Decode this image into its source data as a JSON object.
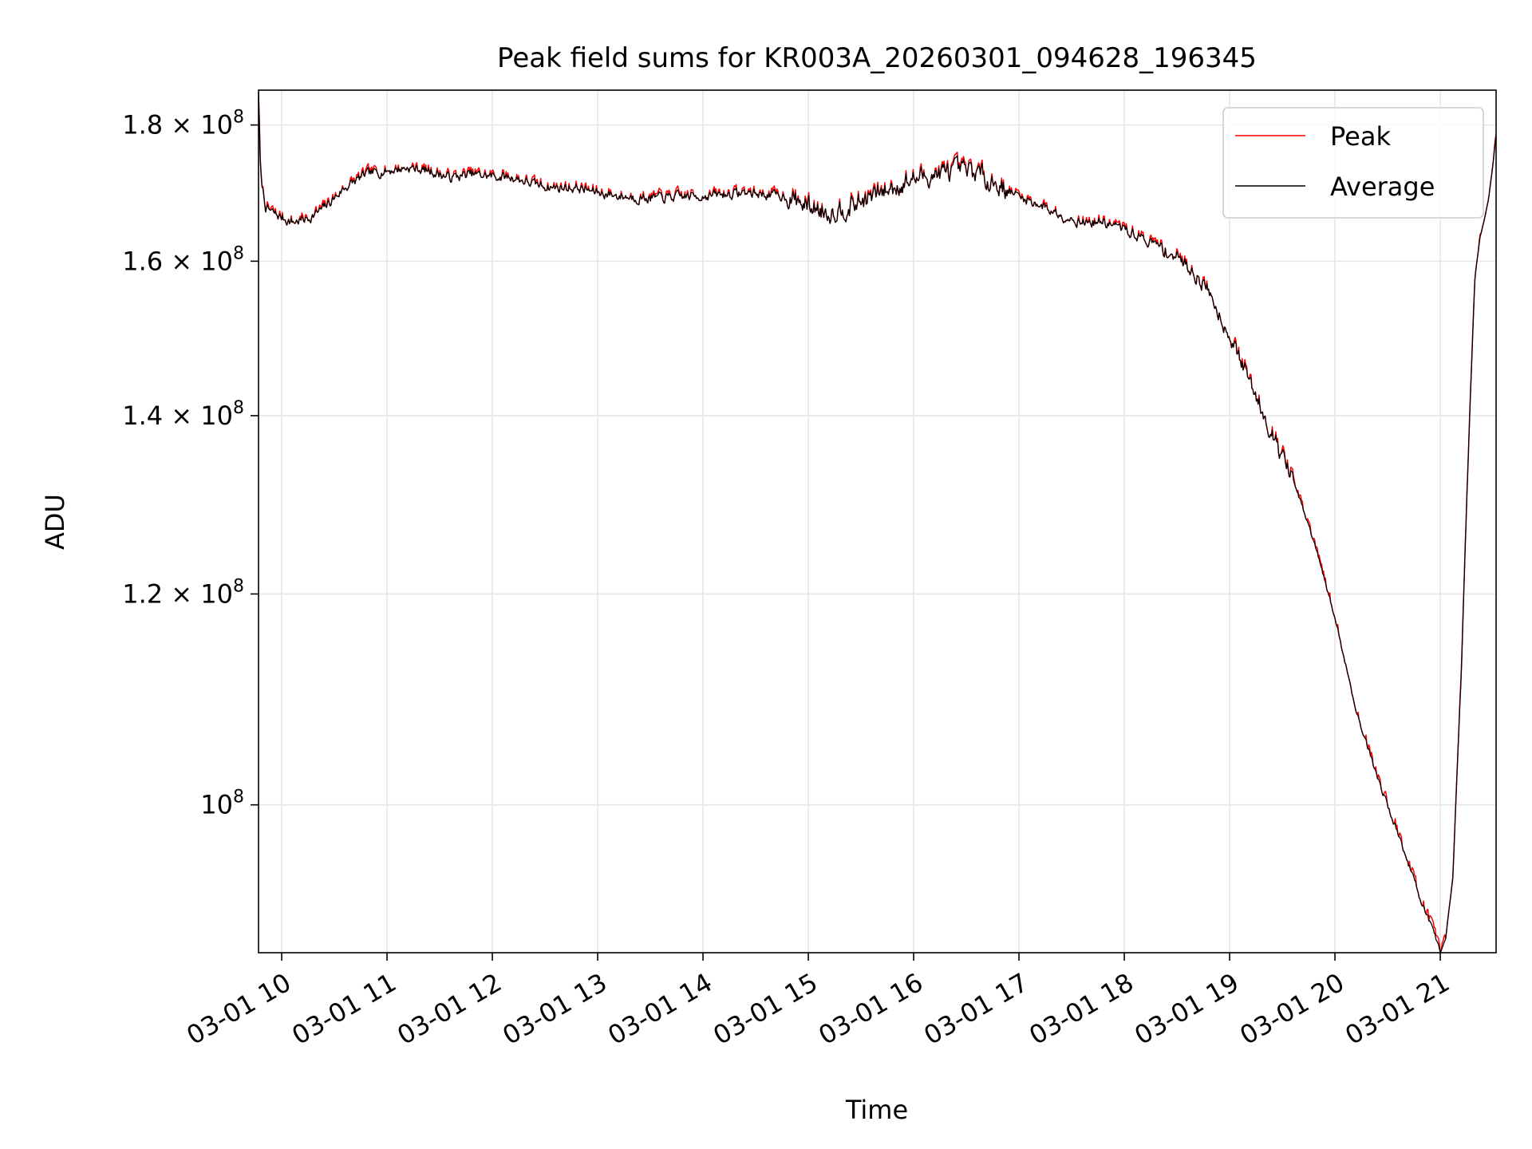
{
  "chart_data": {
    "type": "line",
    "title": "Peak field sums for KR003A_20260301_094628_196345",
    "xlabel": "Time",
    "ylabel": "ADU",
    "yscale": "log",
    "grid": true,
    "legend_position": "top-right",
    "xlim": [
      9.78,
      21.53
    ],
    "ylim": [
      88000000,
      185500000
    ],
    "x_ticks": [
      {
        "value": 10,
        "label": "03-01 10"
      },
      {
        "value": 11,
        "label": "03-01 11"
      },
      {
        "value": 12,
        "label": "03-01 12"
      },
      {
        "value": 13,
        "label": "03-01 13"
      },
      {
        "value": 14,
        "label": "03-01 14"
      },
      {
        "value": 15,
        "label": "03-01 15"
      },
      {
        "value": 16,
        "label": "03-01 16"
      },
      {
        "value": 17,
        "label": "03-01 17"
      },
      {
        "value": 18,
        "label": "03-01 18"
      },
      {
        "value": 19,
        "label": "03-01 19"
      },
      {
        "value": 20,
        "label": "03-01 20"
      },
      {
        "value": 21,
        "label": "03-01 21"
      }
    ],
    "y_ticks": [
      {
        "value": 100000000,
        "mantissa": "",
        "exponent": "8"
      },
      {
        "value": 120000000,
        "mantissa": "1.2",
        "exponent": "8"
      },
      {
        "value": 140000000,
        "mantissa": "1.4",
        "exponent": "8"
      },
      {
        "value": 160000000,
        "mantissa": "1.6",
        "exponent": "8"
      },
      {
        "value": 180000000,
        "mantissa": "1.8",
        "exponent": "8"
      }
    ],
    "x_unit": "hour of 2026-03-01",
    "y_unit": "ADU",
    "noise_amplitude": 1300000,
    "anchors": [
      [
        9.78,
        185500000
      ],
      [
        9.8,
        172000000
      ],
      [
        9.85,
        167500000
      ],
      [
        9.95,
        166500000
      ],
      [
        10.1,
        165500000
      ],
      [
        10.25,
        166000000
      ],
      [
        10.4,
        167500000
      ],
      [
        10.6,
        170500000
      ],
      [
        10.8,
        172500000
      ],
      [
        11.0,
        173000000
      ],
      [
        11.2,
        173500000
      ],
      [
        11.4,
        173000000
      ],
      [
        11.6,
        172000000
      ],
      [
        11.8,
        172500000
      ],
      [
        12.0,
        172200000
      ],
      [
        12.2,
        172000000
      ],
      [
        12.4,
        171000000
      ],
      [
        12.6,
        170500000
      ],
      [
        12.8,
        170500000
      ],
      [
        13.0,
        169800000
      ],
      [
        13.2,
        169300000
      ],
      [
        13.4,
        169000000
      ],
      [
        13.6,
        169000000
      ],
      [
        13.8,
        169200000
      ],
      [
        14.0,
        169300000
      ],
      [
        14.2,
        169500000
      ],
      [
        14.4,
        169800000
      ],
      [
        14.6,
        169500000
      ],
      [
        14.8,
        169200000
      ],
      [
        15.0,
        167800000
      ],
      [
        15.2,
        167000000
      ],
      [
        15.4,
        167800000
      ],
      [
        15.6,
        169200000
      ],
      [
        15.8,
        170500000
      ],
      [
        16.0,
        171800000
      ],
      [
        16.2,
        172500000
      ],
      [
        16.4,
        173000000
      ],
      [
        16.6,
        172800000
      ],
      [
        16.8,
        171000000
      ],
      [
        17.0,
        169200000
      ],
      [
        17.2,
        168000000
      ],
      [
        17.4,
        166500000
      ],
      [
        17.6,
        165500000
      ],
      [
        17.8,
        165500000
      ],
      [
        18.0,
        164500000
      ],
      [
        18.2,
        163000000
      ],
      [
        18.4,
        161500000
      ],
      [
        18.6,
        159500000
      ],
      [
        18.8,
        156000000
      ],
      [
        19.0,
        150000000
      ],
      [
        19.2,
        144000000
      ],
      [
        19.4,
        138000000
      ],
      [
        19.6,
        132500000
      ],
      [
        19.8,
        125500000
      ],
      [
        20.0,
        117500000
      ],
      [
        20.2,
        108500000
      ],
      [
        20.4,
        102500000
      ],
      [
        20.6,
        97500000
      ],
      [
        20.8,
        92500000
      ],
      [
        21.0,
        88000000
      ],
      [
        21.05,
        89000000
      ],
      [
        21.12,
        94000000
      ],
      [
        21.2,
        112000000
      ],
      [
        21.28,
        140000000
      ],
      [
        21.33,
        158000000
      ],
      [
        21.38,
        163500000
      ],
      [
        21.42,
        166000000
      ],
      [
        21.46,
        169000000
      ],
      [
        21.5,
        174000000
      ],
      [
        21.53,
        178500000
      ]
    ],
    "series": [
      {
        "name": "Peak",
        "color": "#ff0000",
        "peak_offset": 300000,
        "noise_seed": 7
      },
      {
        "name": "Average",
        "color": "#000000",
        "peak_offset": 0,
        "noise_seed": 7
      }
    ]
  }
}
